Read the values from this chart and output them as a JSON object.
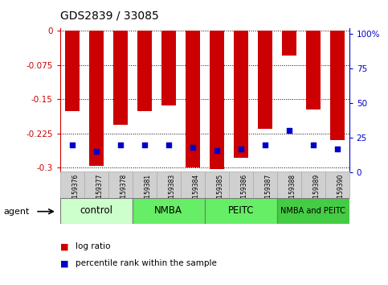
{
  "title": "GDS2839 / 33085",
  "samples": [
    "GSM159376",
    "GSM159377",
    "GSM159378",
    "GSM159381",
    "GSM159383",
    "GSM159384",
    "GSM159385",
    "GSM159386",
    "GSM159387",
    "GSM159388",
    "GSM159389",
    "GSM159390"
  ],
  "log_ratio": [
    -0.175,
    -0.295,
    -0.205,
    -0.175,
    -0.163,
    -0.3,
    -0.302,
    -0.278,
    -0.215,
    -0.055,
    -0.172,
    -0.24
  ],
  "percentile_rank": [
    20,
    15,
    20,
    20,
    20,
    18,
    16,
    17,
    20,
    30,
    20,
    17
  ],
  "groups": [
    {
      "label": "control",
      "indices": [
        0,
        1,
        2
      ],
      "color": "#ccffcc"
    },
    {
      "label": "NMBA",
      "indices": [
        3,
        4,
        5
      ],
      "color": "#66ee66"
    },
    {
      "label": "PEITC",
      "indices": [
        6,
        7,
        8
      ],
      "color": "#66ee66"
    },
    {
      "label": "NMBA and PEITC",
      "indices": [
        9,
        10,
        11
      ],
      "color": "#44cc44"
    }
  ],
  "bar_color": "#cc0000",
  "dot_color": "#0000cc",
  "ylim_left": [
    -0.31,
    0.005
  ],
  "ylim_right": [
    0,
    103.55
  ],
  "yticks_left": [
    0,
    -0.075,
    -0.15,
    -0.225,
    -0.3
  ],
  "yticks_left_labels": [
    "0",
    "-0.075",
    "-0.15",
    "-0.225",
    "-0.3"
  ],
  "yticks_right": [
    0,
    25,
    50,
    75,
    100
  ],
  "yticks_right_labels": [
    "0",
    "25",
    "50",
    "75",
    "100%"
  ],
  "tick_label_color_left": "#cc0000",
  "tick_label_color_right": "#0000cc"
}
